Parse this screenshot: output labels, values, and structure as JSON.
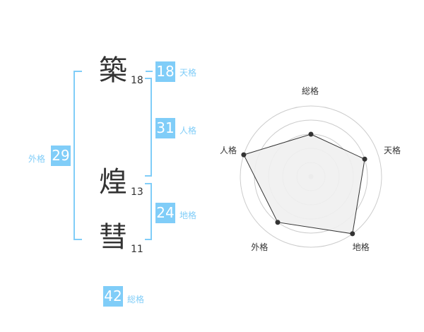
{
  "name_chars": [
    {
      "char": "築",
      "strokes": "18"
    },
    {
      "char": "煌",
      "strokes": "13"
    },
    {
      "char": "彗",
      "strokes": "11"
    }
  ],
  "fortunes": {
    "tenkaku": {
      "label": "天格",
      "value": "18"
    },
    "jinkaku": {
      "label": "人格",
      "value": "31"
    },
    "chikaku": {
      "label": "地格",
      "value": "24"
    },
    "gaikaku": {
      "label": "外格",
      "value": "29"
    },
    "soukaku": {
      "label": "総格",
      "value": "42"
    }
  },
  "accent_color": "#80cdf8",
  "chart_data": {
    "type": "radar",
    "axes": [
      "総格",
      "天格",
      "地格",
      "外格",
      "人格"
    ],
    "values": [
      3,
      4,
      5,
      4,
      5
    ],
    "range": [
      0,
      5
    ],
    "rings": 5,
    "fill": "#f0f0f0",
    "line": "#333333"
  }
}
